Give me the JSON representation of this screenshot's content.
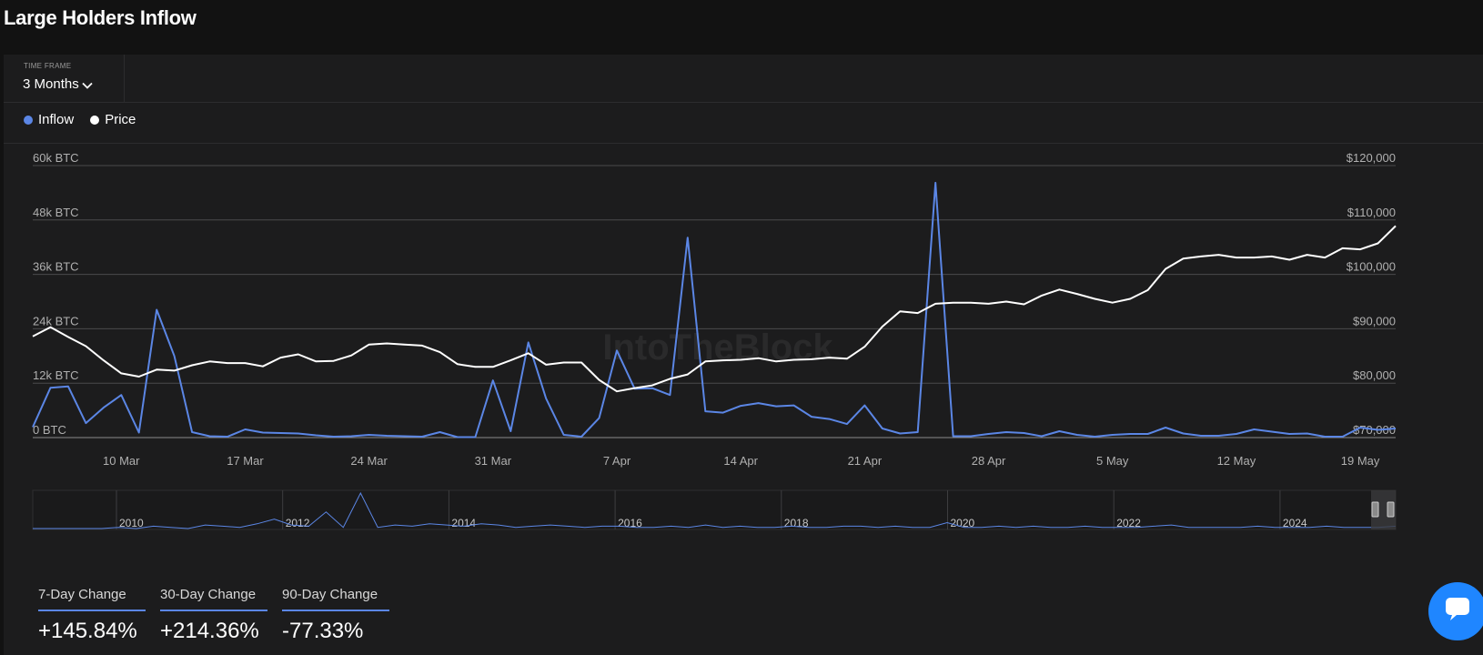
{
  "page": {
    "title": "Large Holders Inflow"
  },
  "time_frame": {
    "label": "TIME FRAME",
    "value": "3 Months",
    "icon": "chevron-down-icon"
  },
  "legend": [
    {
      "label": "Inflow",
      "color": "#5b86e5"
    },
    {
      "label": "Price",
      "color": "#ffffff"
    }
  ],
  "chart_data": {
    "type": "line",
    "x": [
      "5 Mar",
      "6 Mar",
      "7 Mar",
      "8 Mar",
      "9 Mar",
      "10 Mar",
      "11 Mar",
      "12 Mar",
      "13 Mar",
      "14 Mar",
      "15 Mar",
      "16 Mar",
      "17 Mar",
      "18 Mar",
      "19 Mar",
      "20 Mar",
      "21 Mar",
      "22 Mar",
      "23 Mar",
      "24 Mar",
      "25 Mar",
      "26 Mar",
      "27 Mar",
      "28 Mar",
      "29 Mar",
      "30 Mar",
      "31 Mar",
      "1 Apr",
      "2 Apr",
      "3 Apr",
      "4 Apr",
      "5 Apr",
      "6 Apr",
      "7 Apr",
      "8 Apr",
      "9 Apr",
      "10 Apr",
      "11 Apr",
      "12 Apr",
      "13 Apr",
      "14 Apr",
      "15 Apr",
      "16 Apr",
      "17 Apr",
      "18 Apr",
      "19 Apr",
      "20 Apr",
      "21 Apr",
      "22 Apr",
      "23 Apr",
      "24 Apr",
      "25 Apr",
      "26 Apr",
      "27 Apr",
      "28 Apr",
      "29 Apr",
      "30 Apr",
      "1 May",
      "2 May",
      "3 May",
      "4 May",
      "5 May",
      "6 May",
      "7 May",
      "8 May",
      "9 May",
      "10 May",
      "11 May",
      "12 May",
      "13 May",
      "14 May",
      "15 May",
      "16 May",
      "17 May",
      "18 May",
      "19 May",
      "20 May",
      "21 May"
    ],
    "x_ticks": [
      "10 Mar",
      "17 Mar",
      "24 Mar",
      "31 Mar",
      "7 Apr",
      "14 Apr",
      "21 Apr",
      "28 Apr",
      "5 May",
      "12 May",
      "19 May"
    ],
    "series": [
      {
        "name": "Inflow",
        "axis": "left",
        "color": "#5b86e5",
        "values": [
          2300,
          11000,
          11300,
          3200,
          6600,
          9400,
          1100,
          28200,
          18000,
          1200,
          300,
          200,
          1800,
          1100,
          1000,
          900,
          500,
          200,
          300,
          600,
          400,
          300,
          200,
          1200,
          100,
          100,
          12600,
          1400,
          21000,
          8600,
          600,
          200,
          4300,
          19200,
          10800,
          10900,
          9400,
          44100,
          5800,
          5500,
          7000,
          7600,
          6900,
          7100,
          4600,
          4100,
          3000,
          7100,
          2000,
          900,
          1200,
          56200,
          300,
          300,
          800,
          1200,
          1000,
          300,
          1400,
          600,
          200,
          600,
          800,
          800,
          2200,
          900,
          400,
          400,
          800,
          1800,
          1300,
          800,
          900,
          200,
          200,
          2200,
          1700,
          2000
        ]
      },
      {
        "name": "Price",
        "axis": "right",
        "color": "#ffffff",
        "values": [
          88600,
          90300,
          88500,
          86800,
          84200,
          81800,
          81200,
          82500,
          82300,
          83300,
          84000,
          83700,
          83700,
          83100,
          84700,
          85300,
          84000,
          84100,
          85100,
          87100,
          87300,
          87100,
          86900,
          85700,
          83500,
          83000,
          83000,
          84200,
          85500,
          83400,
          83800,
          83800,
          80600,
          78500,
          79100,
          79600,
          80800,
          81600,
          84000,
          84200,
          84300,
          84600,
          84000,
          84300,
          84400,
          84700,
          84500,
          86700,
          90400,
          93200,
          92900,
          94600,
          94800,
          94800,
          94600,
          95000,
          94500,
          96100,
          97200,
          96400,
          95500,
          94800,
          95500,
          97100,
          101000,
          102900,
          103300,
          103600,
          103100,
          103100,
          103300,
          102700,
          103600,
          103100,
          104800,
          104600,
          105700,
          108900
        ]
      }
    ],
    "y_left": {
      "ticks": [
        "0 BTC",
        "12k BTC",
        "24k BTC",
        "36k BTC",
        "48k BTC",
        "60k BTC"
      ],
      "range": [
        0,
        60000
      ]
    },
    "y_right": {
      "ticks": [
        "$70,000",
        "$80,000",
        "$90,000",
        "$100,000",
        "$110,000",
        "$120,000"
      ],
      "range": [
        70000,
        120000
      ]
    },
    "grid": true,
    "navigator": {
      "years": [
        "2010",
        "2012",
        "2014",
        "2016",
        "2018",
        "2020",
        "2022",
        "2024"
      ],
      "inflow_history": [
        0,
        0,
        0,
        0,
        0,
        1,
        0,
        2,
        1,
        0,
        3,
        2,
        1,
        4,
        8,
        3,
        2,
        14,
        1,
        30,
        1,
        3,
        2,
        4,
        3,
        2,
        4,
        3,
        1,
        2,
        3,
        2,
        1,
        2,
        2,
        1,
        1,
        2,
        1,
        3,
        1,
        2,
        1,
        1,
        2,
        1,
        1,
        2,
        2,
        1,
        2,
        1,
        1,
        5,
        1,
        1,
        2,
        1,
        2,
        1,
        1,
        2,
        1,
        1,
        1,
        2,
        3,
        1,
        1,
        1,
        1,
        2,
        1,
        1,
        1,
        2,
        1,
        1,
        1,
        2
      ]
    }
  },
  "stats": [
    {
      "label": "7-Day Change",
      "value": "+145.84%"
    },
    {
      "label": "30-Day Change",
      "value": "+214.36%"
    },
    {
      "label": "90-Day Change",
      "value": "-77.33%"
    }
  ],
  "chat": {
    "icon": "chat-icon"
  }
}
